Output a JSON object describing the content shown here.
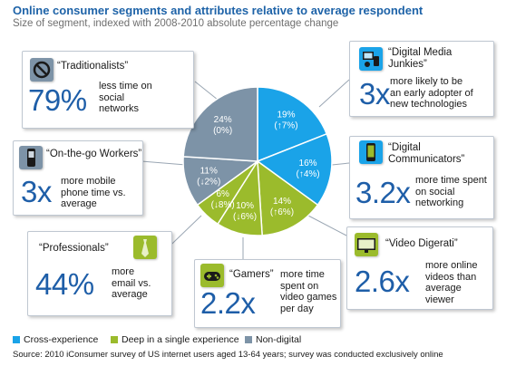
{
  "title": "Online consumer segments and attributes relative to average respondent",
  "subtitle": "Size of segment, indexed with 2008-2010 absolute percentage change",
  "colors": {
    "cross": "#1aa3e8",
    "deep": "#9bbb2c",
    "nondigital": "#7d93a7",
    "text_blue": "#1e5ea8"
  },
  "segments": {
    "traditionalists": {
      "name": "“Traditionalists”",
      "big": "79%",
      "desc": [
        "less time on",
        "social",
        "networks"
      ],
      "icon": "no-sign-icon"
    },
    "onthego": {
      "name": "“On-the-go Workers”",
      "big": "3x",
      "desc": [
        "more mobile",
        "phone time vs.",
        "average"
      ],
      "icon": "mobile-phone-icon"
    },
    "professionals": {
      "name": "“Professionals”",
      "big": "44%",
      "desc": [
        "more",
        "email vs.",
        "average"
      ],
      "icon": "tie-icon"
    },
    "gamers": {
      "name": "“Gamers”",
      "big": "2.2x",
      "desc": [
        "more time",
        "spent on",
        "video games",
        "per day"
      ],
      "icon": "gamepad-icon"
    },
    "digitalmedia": {
      "name": [
        "“Digital Media",
        "Junkies”"
      ],
      "big": "3x",
      "desc": [
        "more likely to be",
        "an early adopter of",
        "new technologies"
      ],
      "icon": "media-devices-icon"
    },
    "communicators": {
      "name": [
        "“Digital",
        "Communicators”"
      ],
      "big": "3.2x",
      "desc": [
        "more time spent",
        "on social",
        "networking"
      ],
      "icon": "smartphone-icon"
    },
    "digerati": {
      "name": "“Video Digerati”",
      "big": "2.6x",
      "desc": [
        "more online",
        "videos than",
        "average viewer"
      ],
      "icon": "video-screen-icon"
    }
  },
  "legend": [
    {
      "label": "Cross-experience",
      "color": "#1aa3e8"
    },
    {
      "label": "Deep in a single experience",
      "color": "#9bbb2c"
    },
    {
      "label": "Non-digital",
      "color": "#7d93a7"
    }
  ],
  "source": "Source: 2010 iConsumer survey of US internet users aged 13-64 years; survey was conducted exclusively online",
  "chart_data": {
    "type": "pie",
    "title": "Online consumer segments and attributes relative to average respondent",
    "subtitle": "Size of segment, indexed with 2008-2010 absolute percentage change",
    "start_angle_deg": 0,
    "direction": "clockwise",
    "slices": [
      {
        "segment": "Digital Media Junkies",
        "value": 19,
        "change": "(↑7%)",
        "label": "19%",
        "group": "Cross-experience",
        "color": "#1aa3e8"
      },
      {
        "segment": "Digital Communicators",
        "value": 16,
        "change": "(↑4%)",
        "label": "16%",
        "group": "Cross-experience",
        "color": "#1aa3e8"
      },
      {
        "segment": "Video Digerati",
        "value": 14,
        "change": "(↑6%)",
        "label": "14%",
        "group": "Deep in a single experience",
        "color": "#9bbb2c"
      },
      {
        "segment": "Gamers",
        "value": 10,
        "change": "(↓6%)",
        "label": "10%",
        "group": "Deep in a single experience",
        "color": "#9bbb2c"
      },
      {
        "segment": "Professionals",
        "value": 6,
        "change": "(↓8%)",
        "label": "6%",
        "group": "Deep in a single experience",
        "color": "#9bbb2c"
      },
      {
        "segment": "On-the-go Workers",
        "value": 11,
        "change": "(↓2%)",
        "label": "11%",
        "group": "Non-digital",
        "color": "#7d93a7"
      },
      {
        "segment": "Traditionalists",
        "value": 24,
        "change": "(0%)",
        "label": "24%",
        "group": "Non-digital",
        "color": "#7d93a7"
      }
    ],
    "legend_position": "bottom-left"
  }
}
